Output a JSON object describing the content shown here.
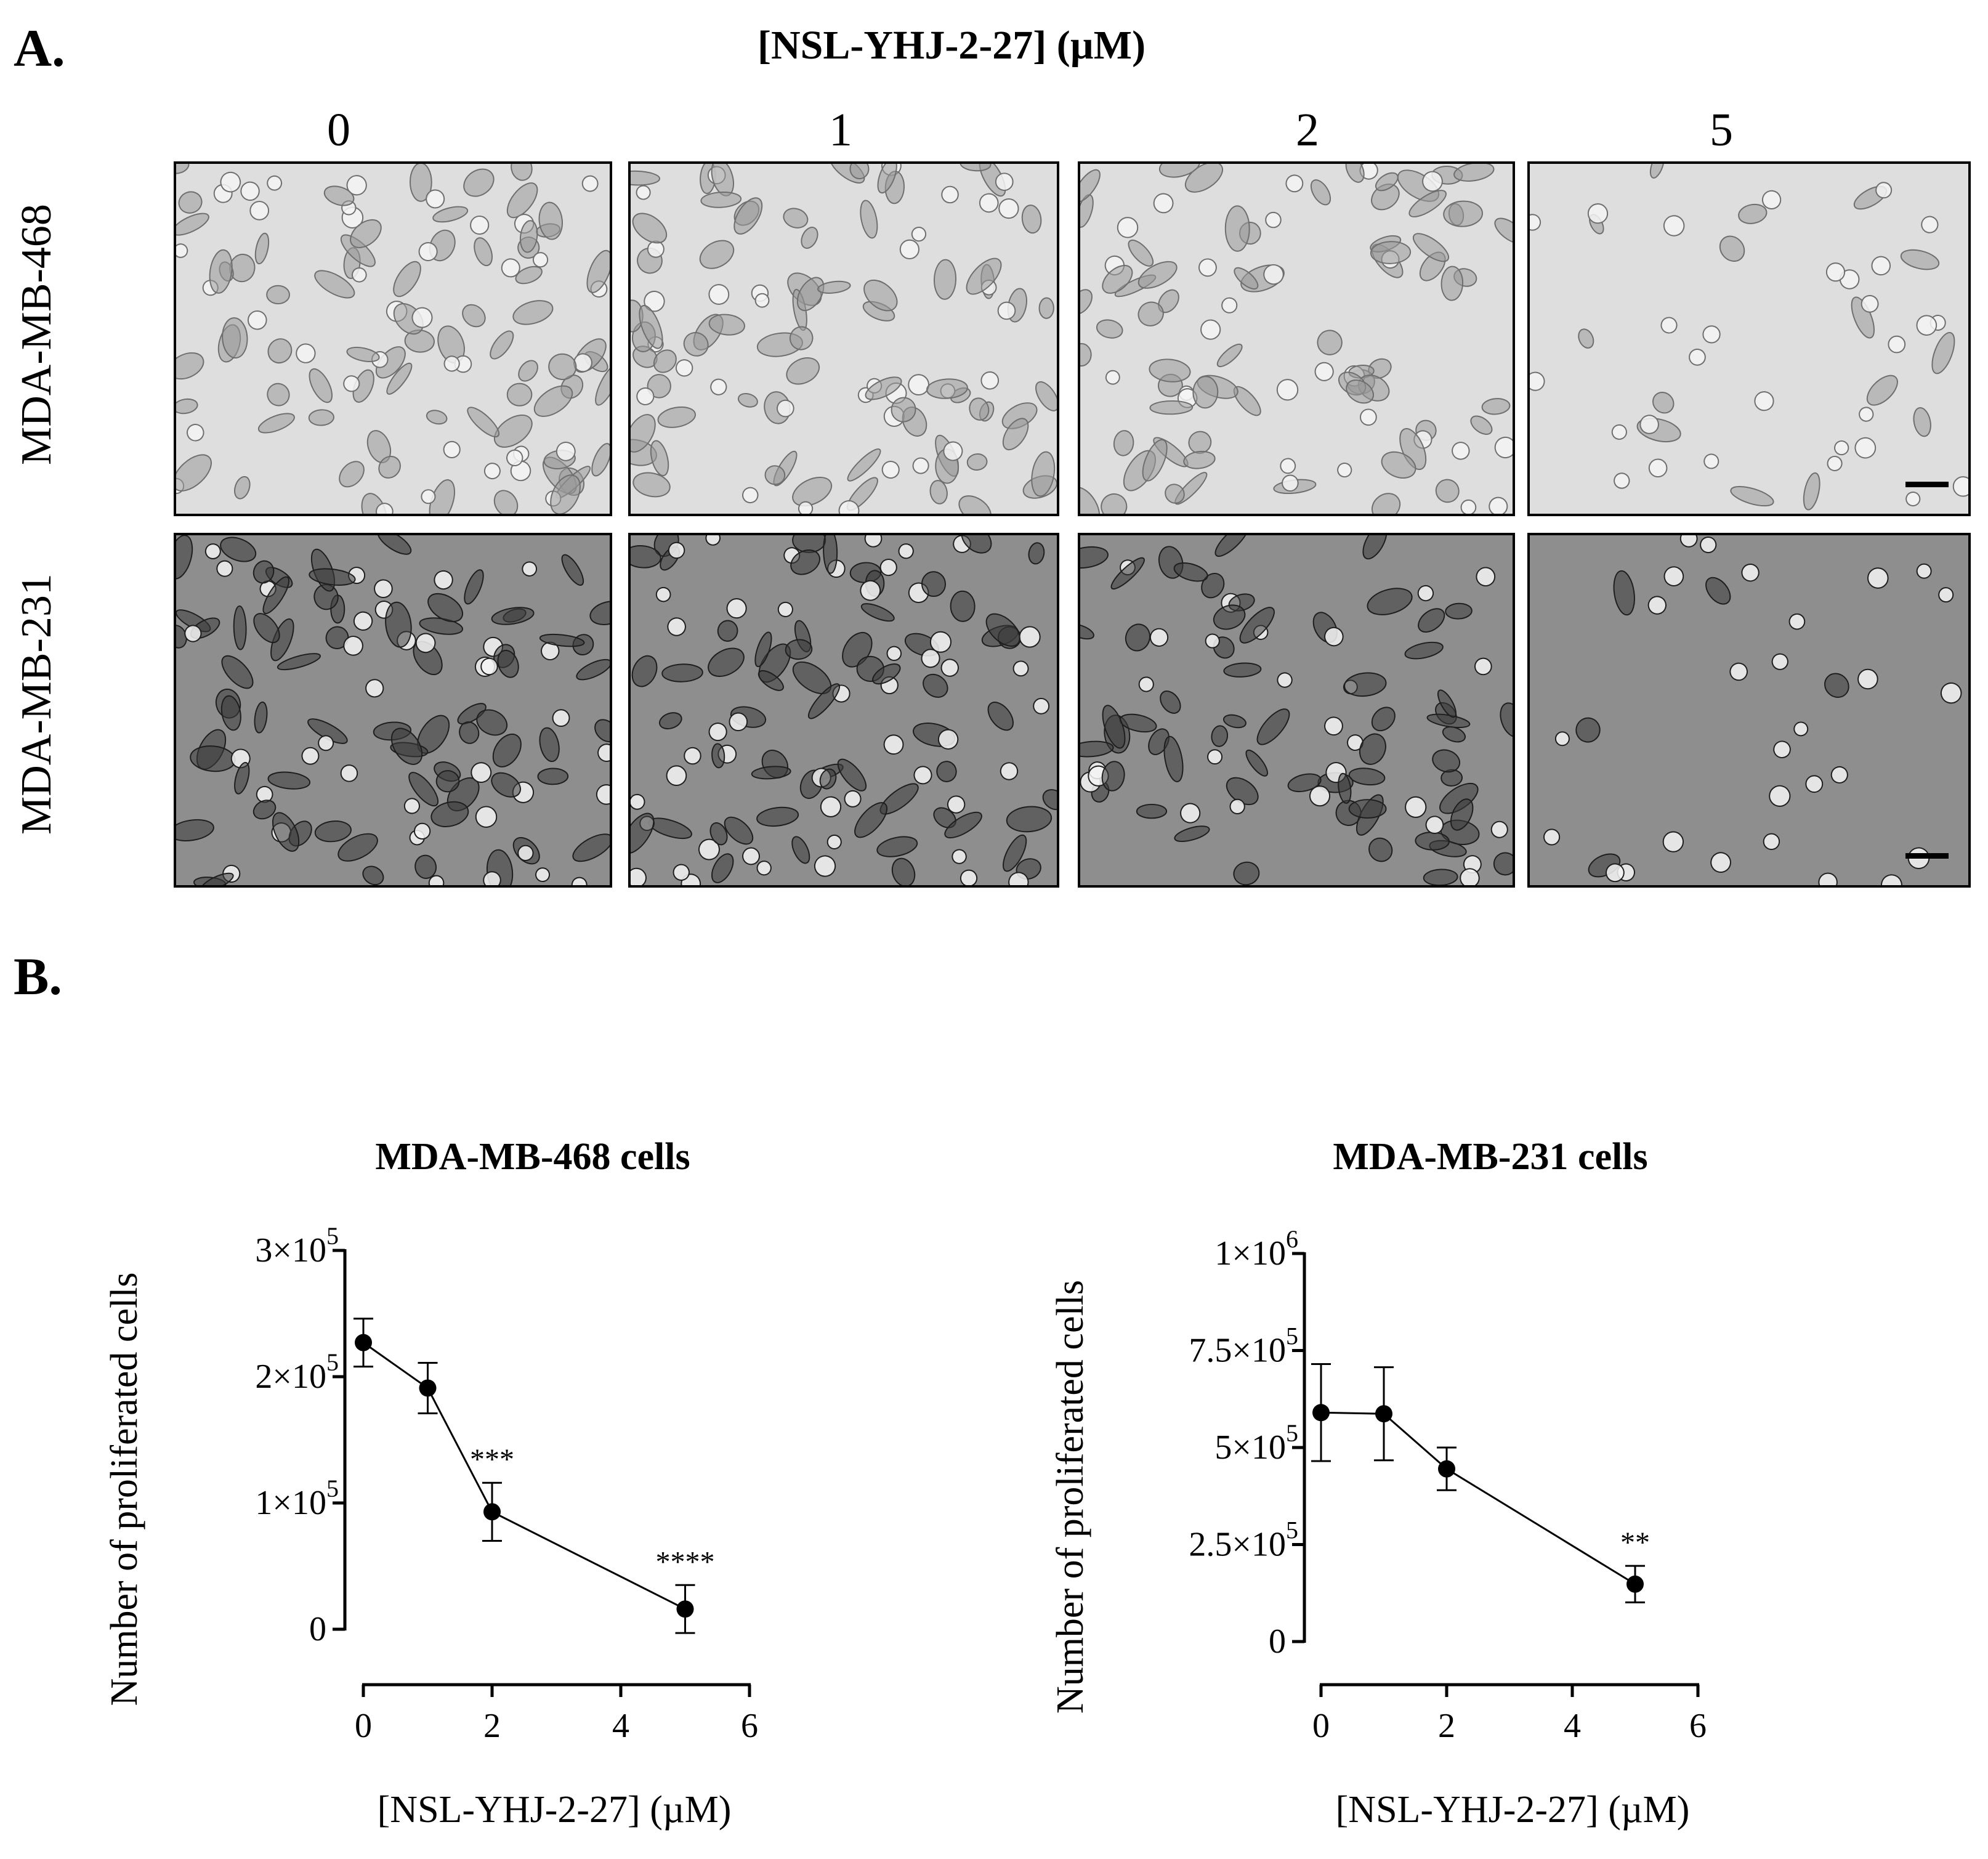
{
  "panel_a": {
    "label": "A.",
    "heading": "[NSL-YHJ-2-27] (µM)",
    "concentrations": [
      "0",
      "1",
      "2",
      "5"
    ],
    "rows": [
      {
        "label": "MDA-MB-468",
        "background": "#dedede",
        "cell_color": "#9a9a9a"
      },
      {
        "label": "MDA-MB-231",
        "background": "#8e8e8e",
        "cell_color": "#3c3c3c"
      }
    ]
  },
  "panel_b": {
    "label": "B."
  },
  "chart_data": [
    {
      "type": "line",
      "title": "MDA-MB-468 cells",
      "xlabel": "[NSL-YHJ-2-27] (µM)",
      "ylabel": "Number of proliferated cells",
      "x": [
        0,
        1,
        2,
        5
      ],
      "y": [
        227000,
        191000,
        93000,
        16000
      ],
      "error": [
        19000,
        20000,
        23000,
        19000
      ],
      "significance": [
        "",
        "",
        "***",
        "****"
      ],
      "xlim": [
        0,
        6
      ],
      "ylim": [
        0,
        300000
      ],
      "xticks": [
        0,
        2,
        4,
        6
      ],
      "xtick_labels": [
        "0",
        "2",
        "4",
        "6"
      ],
      "yticks": [
        0,
        100000,
        200000,
        300000
      ],
      "ytick_labels": [
        {
          "base": "0",
          "exp": ""
        },
        {
          "base": "1×10",
          "exp": "5"
        },
        {
          "base": "2×10",
          "exp": "5"
        },
        {
          "base": "3×10",
          "exp": "5"
        }
      ],
      "grid": false
    },
    {
      "type": "line",
      "title": "MDA-MB-231 cells",
      "xlabel": "[NSL-YHJ-2-27] (µM)",
      "ylabel": "Number of proliferated cells",
      "x": [
        0,
        1,
        2,
        5
      ],
      "y": [
        590000,
        587000,
        445000,
        148000
      ],
      "error": [
        125000,
        120000,
        55000,
        47000
      ],
      "significance": [
        "",
        "",
        "",
        "**"
      ],
      "xlim": [
        0,
        6
      ],
      "ylim": [
        0,
        1000000
      ],
      "xticks": [
        0,
        2,
        4,
        6
      ],
      "xtick_labels": [
        "0",
        "2",
        "4",
        "6"
      ],
      "yticks": [
        0,
        250000,
        500000,
        750000,
        1000000
      ],
      "ytick_labels": [
        {
          "base": "0",
          "exp": ""
        },
        {
          "base": "2.5×10",
          "exp": "5"
        },
        {
          "base": "5×10",
          "exp": "5"
        },
        {
          "base": "7.5×10",
          "exp": "5"
        },
        {
          "base": "1×10",
          "exp": "6"
        }
      ],
      "grid": false
    }
  ]
}
